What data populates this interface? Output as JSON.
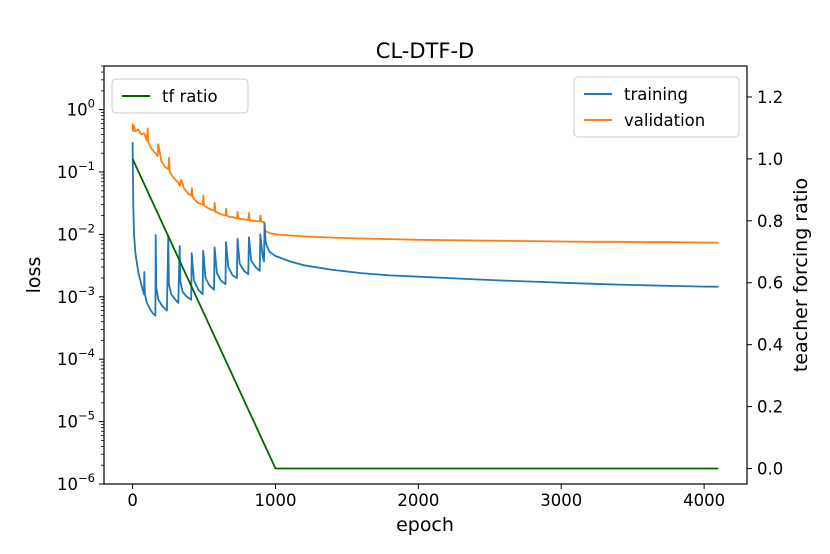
{
  "chart_data": {
    "type": "line",
    "title": "CL-DTF-D",
    "xlabel": "epoch",
    "ylabel": "loss",
    "y2label": "teacher forcing ratio",
    "xlim": [
      -200,
      4300
    ],
    "x_ticks": [
      0,
      1000,
      2000,
      3000,
      4000
    ],
    "x_tick_labels": [
      "0",
      "1000",
      "2000",
      "3000",
      "4000"
    ],
    "yscale": "log",
    "ylim": [
      1e-06,
      5
    ],
    "y_ticks": [
      1e-06,
      1e-05,
      0.0001,
      0.001,
      0.01,
      0.1,
      1
    ],
    "y_tick_labels": [
      {
        "base": "10",
        "exp": "−6"
      },
      {
        "base": "10",
        "exp": "−5"
      },
      {
        "base": "10",
        "exp": "−4"
      },
      {
        "base": "10",
        "exp": "−3"
      },
      {
        "base": "10",
        "exp": "−2"
      },
      {
        "base": "10",
        "exp": "−1"
      },
      {
        "base": "10",
        "exp": "0"
      }
    ],
    "y2lim": [
      -0.05,
      1.3
    ],
    "y2_ticks": [
      0.0,
      0.2,
      0.4,
      0.6,
      0.8,
      1.0,
      1.2
    ],
    "y2_tick_labels": [
      "0.0",
      "0.2",
      "0.4",
      "0.6",
      "0.8",
      "1.0",
      "1.2"
    ],
    "grid": false,
    "legend_left": {
      "placement": "top-left",
      "entries": [
        "tf ratio"
      ]
    },
    "legend_right": {
      "placement": "top-right",
      "entries": [
        "training",
        "validation"
      ]
    },
    "series": [
      {
        "name": "training",
        "axis": "left",
        "color": "#1f77b4",
        "x": [
          0,
          2,
          5,
          10,
          20,
          40,
          60,
          80,
          82,
          86,
          100,
          120,
          140,
          160,
          162,
          166,
          180,
          210,
          240,
          250,
          254,
          270,
          300,
          320,
          330,
          334,
          350,
          380,
          410,
          414,
          430,
          460,
          490,
          494,
          510,
          540,
          570,
          574,
          590,
          620,
          650,
          654,
          670,
          700,
          730,
          734,
          750,
          780,
          810,
          814,
          830,
          860,
          890,
          894,
          910,
          920,
          924,
          930,
          940,
          960,
          1000,
          1100,
          1200,
          1400,
          1600,
          1800,
          2000,
          2200,
          2400,
          2600,
          2800,
          3000,
          3200,
          3400,
          3600,
          3800,
          4000,
          4100
        ],
        "y": [
          0.3,
          0.1,
          0.03,
          0.01,
          0.005,
          0.0025,
          0.0016,
          0.0011,
          0.0025,
          0.0011,
          0.0008,
          0.00065,
          0.00055,
          0.0005,
          0.0098,
          0.0014,
          0.0009,
          0.0007,
          0.0006,
          0.0096,
          0.0016,
          0.0011,
          0.0009,
          0.0008,
          0.0065,
          0.0018,
          0.0012,
          0.001,
          0.0009,
          0.005,
          0.0018,
          0.0013,
          0.0011,
          0.0055,
          0.002,
          0.0015,
          0.0013,
          0.0062,
          0.0024,
          0.0018,
          0.0016,
          0.0075,
          0.003,
          0.0022,
          0.002,
          0.0085,
          0.0034,
          0.0026,
          0.0023,
          0.009,
          0.0038,
          0.003,
          0.0026,
          0.01,
          0.0045,
          0.0037,
          0.015,
          0.008,
          0.0065,
          0.0052,
          0.0045,
          0.0037,
          0.0032,
          0.0027,
          0.0024,
          0.0022,
          0.0021,
          0.002,
          0.0019,
          0.00182,
          0.00175,
          0.00168,
          0.00162,
          0.00157,
          0.00153,
          0.00149,
          0.00146,
          0.00145
        ]
      },
      {
        "name": "validation",
        "axis": "left",
        "color": "#ff7f0e",
        "x": [
          0,
          3,
          10,
          20,
          40,
          60,
          80,
          100,
          105,
          110,
          130,
          160,
          175,
          180,
          200,
          230,
          250,
          255,
          260,
          280,
          300,
          320,
          330,
          340,
          360,
          390,
          410,
          415,
          420,
          440,
          460,
          490,
          495,
          500,
          520,
          550,
          570,
          575,
          580,
          600,
          620,
          650,
          655,
          660,
          680,
          700,
          730,
          735,
          740,
          760,
          790,
          810,
          815,
          820,
          840,
          870,
          890,
          895,
          900,
          920,
          925,
          940,
          960,
          1000,
          1200,
          1400,
          1600,
          1800,
          2000,
          2200,
          2400,
          2600,
          2800,
          3000,
          3200,
          3400,
          3600,
          3800,
          4000,
          4100
        ],
        "y": [
          0.6,
          0.45,
          0.55,
          0.45,
          0.48,
          0.4,
          0.42,
          0.32,
          0.5,
          0.3,
          0.24,
          0.2,
          0.18,
          0.28,
          0.15,
          0.12,
          0.11,
          0.17,
          0.1,
          0.085,
          0.075,
          0.068,
          0.06,
          0.075,
          0.055,
          0.045,
          0.042,
          0.055,
          0.04,
          0.035,
          0.032,
          0.03,
          0.042,
          0.029,
          0.027,
          0.025,
          0.024,
          0.032,
          0.023,
          0.022,
          0.021,
          0.02,
          0.026,
          0.02,
          0.019,
          0.019,
          0.018,
          0.023,
          0.018,
          0.0178,
          0.0172,
          0.017,
          0.022,
          0.0168,
          0.0166,
          0.0163,
          0.0162,
          0.02,
          0.016,
          0.0158,
          0.0115,
          0.011,
          0.0105,
          0.01,
          0.0093,
          0.0089,
          0.0086,
          0.0084,
          0.0082,
          0.0081,
          0.008,
          0.0079,
          0.0078,
          0.0077,
          0.0076,
          0.0076,
          0.0075,
          0.0075,
          0.0074,
          0.0074
        ]
      },
      {
        "name": "tf ratio",
        "axis": "right",
        "color": "#006400",
        "x": [
          0,
          1000,
          4100
        ],
        "y": [
          1.0,
          0.0,
          0.0
        ]
      }
    ]
  }
}
